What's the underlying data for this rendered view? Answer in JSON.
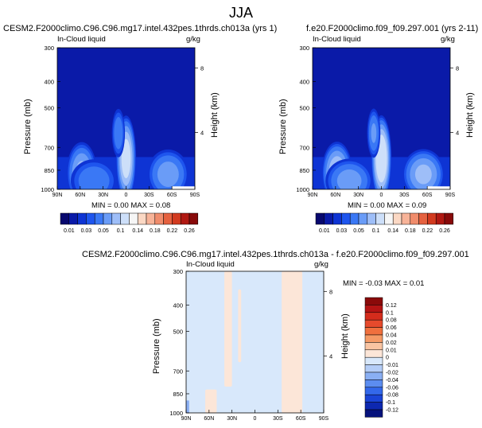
{
  "figure": {
    "title": "JJA"
  },
  "panels": {
    "left": {
      "title": "CESM2.F2000climo.C96.C96.mg17.intel.432pes.1thrds.ch013a (yrs 1)",
      "variable": "In-Cloud liquid",
      "units": "g/kg",
      "stats": "MIN =   0.00  MAX =   0.08"
    },
    "right": {
      "title": "f.e20.F2000climo.f09_f09.297.001 (yrs 2-11)",
      "variable": "In-Cloud liquid",
      "units": "g/kg",
      "stats": "MIN =   0.00  MAX =   0.09"
    },
    "diff": {
      "title": "CESM2.F2000climo.C96.C96.mg17.intel.432pes.1thrds.ch013a - f.e20.F2000climo.f09_f09.297.001",
      "variable": "In-Cloud liquid",
      "units": "g/kg",
      "stats": "MIN =  -0.03  MAX =   0.01"
    }
  },
  "axes": {
    "ylabel": "Pressure (mb)",
    "ylabel_right": "Height (km)",
    "pressure_ticks": [
      "300",
      "400",
      "500",
      "700",
      "850",
      "1000"
    ],
    "height_ticks": [
      "8",
      "4"
    ],
    "lat_ticks": [
      "90N",
      "60N",
      "30N",
      "0",
      "30S",
      "60S",
      "90S"
    ]
  },
  "colorbars": {
    "absolute": {
      "labels": [
        "0.01",
        "0.03",
        "0.05",
        "0.1",
        "0.14",
        "0.18",
        "0.22",
        "0.26"
      ],
      "colors": [
        "#08086e",
        "#0a1aa8",
        "#0e34d4",
        "#1e55ee",
        "#3a78f5",
        "#6a9cf7",
        "#9ebef8",
        "#cddff9",
        "#f6f6f6",
        "#fbd8c4",
        "#f7b398",
        "#f08c6c",
        "#e5613f",
        "#d23a1f",
        "#b01812",
        "#880a0a"
      ]
    },
    "difference": {
      "labels": [
        "0.12",
        "0.1",
        "0.08",
        "0.06",
        "0.04",
        "0.02",
        "0.01",
        "0",
        "-0.01",
        "-0.02",
        "-0.04",
        "-0.06",
        "-0.08",
        "-0.1",
        "-0.12"
      ],
      "colors": [
        "#8a0a0a",
        "#b41414",
        "#d42c1c",
        "#e64a2c",
        "#f0703e",
        "#f59a66",
        "#f9c4a2",
        "#fce6d8",
        "#d8e8fb",
        "#b4cdf7",
        "#8aaff3",
        "#5c8df0",
        "#3368ea",
        "#1a44d6",
        "#0d28b0",
        "#06127c"
      ]
    }
  },
  "chart_data": [
    {
      "type": "heatmap",
      "title": "CESM2.F2000climo.C96.C96.mg17.intel.432pes.1thrds.ch013a (yrs 1)",
      "subtitle": "In-Cloud liquid",
      "xlabel": "",
      "ylabel": "Pressure (mb)",
      "x_ticks": [
        "90N",
        "60N",
        "30N",
        "0",
        "30S",
        "60S",
        "90S"
      ],
      "y_ticks": [
        "300",
        "400",
        "500",
        "700",
        "850",
        "1000"
      ],
      "ylim": [
        1000,
        300
      ],
      "units": "g/kg",
      "min": 0.0,
      "max": 0.08,
      "blobs": [
        {
          "lat": 0,
          "p": 770,
          "w": 13,
          "h": 150,
          "v": 0.08
        },
        {
          "lat": 58,
          "p": 870,
          "w": 20,
          "h": 110,
          "v": 0.06
        },
        {
          "lat": -55,
          "p": 880,
          "w": 28,
          "h": 90,
          "v": 0.05
        },
        {
          "lat": 42,
          "p": 930,
          "w": 32,
          "h": 80,
          "v": 0.04
        },
        {
          "lat": 10,
          "p": 620,
          "w": 9,
          "h": 90,
          "v": 0.04
        }
      ]
    },
    {
      "type": "heatmap",
      "title": "f.e20.F2000climo.f09_f09.297.001 (yrs 2-11)",
      "subtitle": "In-Cloud liquid",
      "xlabel": "",
      "ylabel": "Pressure (mb)",
      "x_ticks": [
        "90N",
        "60N",
        "30N",
        "0",
        "30S",
        "60S",
        "90S"
      ],
      "y_ticks": [
        "300",
        "400",
        "500",
        "700",
        "850",
        "1000"
      ],
      "ylim": [
        1000,
        300
      ],
      "units": "g/kg",
      "min": 0.0,
      "max": 0.09,
      "blobs": [
        {
          "lat": 0,
          "p": 770,
          "w": 13,
          "h": 150,
          "v": 0.09
        },
        {
          "lat": 58,
          "p": 870,
          "w": 20,
          "h": 110,
          "v": 0.07
        },
        {
          "lat": -55,
          "p": 880,
          "w": 28,
          "h": 90,
          "v": 0.06
        },
        {
          "lat": 42,
          "p": 930,
          "w": 32,
          "h": 80,
          "v": 0.05
        },
        {
          "lat": 10,
          "p": 620,
          "w": 9,
          "h": 90,
          "v": 0.045
        }
      ]
    },
    {
      "type": "heatmap",
      "title": "CESM2.F2000climo.C96.C96.mg17.intel.432pes.1thrds.ch013a - f.e20.F2000climo.f09_f09.297.001",
      "subtitle": "In-Cloud liquid",
      "xlabel": "",
      "ylabel": "Pressure (mb)",
      "x_ticks": [
        "90N",
        "60N",
        "30N",
        "0",
        "30S",
        "60S",
        "90S"
      ],
      "y_ticks": [
        "300",
        "400",
        "500",
        "700",
        "850",
        "1000"
      ],
      "ylim": [
        1000,
        300
      ],
      "units": "g/kg",
      "min": -0.03,
      "max": 0.01,
      "positive_regions": [
        {
          "lat_from": 40,
          "lat_to": 30,
          "p_from": 300,
          "p_to": 800
        },
        {
          "lat_from": 22,
          "lat_to": 18,
          "p_from": 350,
          "p_to": 650
        },
        {
          "lat_from": -35,
          "lat_to": -62,
          "p_from": 300,
          "p_to": 1000
        },
        {
          "lat_from": 65,
          "lat_to": 50,
          "p_from": 820,
          "p_to": 1000
        }
      ],
      "negative_regions": [
        {
          "lat_from": 90,
          "lat_to": 86,
          "p_from": 900,
          "p_to": 1000
        }
      ]
    }
  ]
}
